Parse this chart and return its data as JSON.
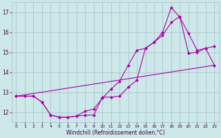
{
  "xlabel": "Windchill (Refroidissement éolien,°C)",
  "xlim": [
    -0.5,
    23.5
  ],
  "ylim": [
    11.5,
    17.5
  ],
  "yticks": [
    12,
    13,
    14,
    15,
    16,
    17
  ],
  "xticks": [
    0,
    1,
    2,
    3,
    4,
    5,
    6,
    7,
    8,
    9,
    10,
    11,
    12,
    13,
    14,
    15,
    16,
    17,
    18,
    19,
    20,
    21,
    22,
    23
  ],
  "bg_color": "#cce8e8",
  "grid_color": "#aabbcc",
  "line_color": "#aa00aa",
  "series1_x": [
    0,
    1,
    2,
    3,
    4,
    5,
    6,
    7,
    8,
    9,
    10,
    11,
    12,
    13,
    14,
    15,
    16,
    17,
    18,
    19,
    20,
    21,
    22,
    23
  ],
  "series1_y": [
    12.8,
    12.8,
    12.8,
    12.5,
    11.85,
    11.75,
    11.75,
    11.8,
    11.85,
    11.85,
    12.75,
    12.75,
    12.8,
    13.25,
    13.6,
    15.2,
    15.5,
    16.0,
    17.25,
    16.75,
    15.95,
    15.1,
    15.2,
    15.3
  ],
  "series2_x": [
    0,
    1,
    2,
    3,
    4,
    5,
    6,
    7,
    8,
    9,
    10,
    11,
    12,
    13,
    14,
    15,
    16,
    17,
    18,
    19,
    20,
    21,
    22,
    23
  ],
  "series2_y": [
    12.8,
    12.8,
    12.8,
    12.5,
    11.85,
    11.75,
    11.75,
    11.8,
    12.05,
    12.15,
    12.7,
    13.15,
    13.55,
    14.35,
    15.1,
    15.2,
    15.5,
    15.85,
    16.5,
    16.8,
    14.95,
    15.0,
    15.2,
    14.35
  ],
  "series3_x": [
    0,
    23
  ],
  "series3_y": [
    12.8,
    14.35
  ]
}
